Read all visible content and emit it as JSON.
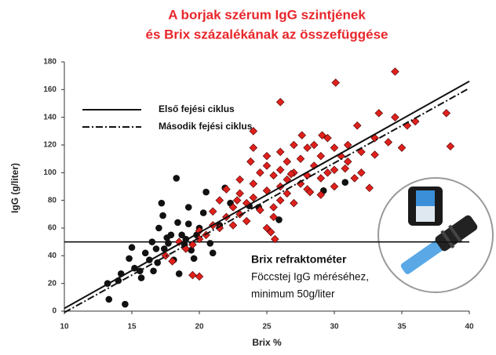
{
  "chart_data": {
    "type": "scatter",
    "title": [
      "A borjak szérum IgG szintjének",
      "és Brix százalékának az összefüggése"
    ],
    "x_label": "Brix %",
    "y_label": "IgG (g/liter)",
    "xlim": [
      10,
      40
    ],
    "ylim": [
      0,
      180
    ],
    "xticks": [
      10,
      15,
      20,
      25,
      30,
      35,
      40
    ],
    "yticks": [
      0,
      20,
      40,
      60,
      80,
      100,
      120,
      140,
      160,
      180
    ],
    "grid": false,
    "series": [
      {
        "marker": "circle",
        "color": "#111111",
        "x": [
          13.2,
          13.3,
          14.5,
          14,
          14.2,
          14.8,
          15,
          15.2,
          15.6,
          15.7,
          16,
          16.3,
          16.6,
          16.9,
          17,
          17.2,
          17.3,
          17.4,
          17.7,
          17.9,
          18.1,
          18.3,
          18.5,
          18.7,
          18.9,
          19,
          19.2,
          19.4,
          19.6,
          19.8,
          20,
          20.3,
          20.5,
          20.8,
          21,
          21.5,
          21.9,
          22.3,
          23.7,
          24.4,
          25.9,
          29.2,
          30.8,
          16.8,
          16.5,
          17.6,
          18.4,
          19.2
        ],
        "values": [
          20,
          8.5,
          5,
          22,
          27,
          38,
          46,
          31,
          29,
          24,
          42,
          37,
          29,
          35,
          60,
          78,
          69,
          45,
          49,
          55,
          37,
          96,
          27,
          55,
          48,
          52,
          63,
          44,
          38,
          55,
          60,
          71,
          86,
          49,
          42,
          62,
          89,
          78,
          76,
          75,
          66,
          87,
          93,
          45,
          50,
          53,
          64,
          75
        ]
      },
      {
        "marker": "diamond",
        "color": "#e0201c",
        "x": [
          17.5,
          18,
          18.5,
          19,
          19.5,
          20,
          20,
          20.5,
          21,
          21,
          21.5,
          21.5,
          22,
          22,
          22.5,
          22.5,
          23,
          23,
          23,
          23.5,
          23.5,
          24,
          24,
          24,
          24.5,
          24.5,
          25,
          25,
          25,
          25,
          25.5,
          25.5,
          25.5,
          26,
          26,
          26,
          26,
          26.5,
          26.5,
          26.5,
          27,
          27,
          27,
          27.5,
          27.5,
          28,
          28,
          28,
          28.5,
          28.5,
          29,
          29,
          29,
          29.5,
          29.5,
          30,
          30,
          30,
          30.5,
          30.8,
          31,
          31,
          31.5,
          31.7,
          32,
          32,
          32.6,
          33,
          33,
          33.3,
          34,
          34.5,
          35,
          35.4,
          36,
          38.3,
          38.6,
          19.5,
          20,
          25.3,
          25.6,
          26,
          27.6,
          29.1,
          30.1,
          34.5,
          24,
          22.8,
          23.8,
          26.8,
          28.2
        ],
        "values": [
          40,
          36,
          50,
          45,
          48,
          52,
          58,
          55,
          62,
          72,
          60,
          80,
          68,
          88,
          75,
          62,
          85,
          70,
          95,
          78,
          65,
          82,
          118,
          92,
          73,
          100,
          60,
          87,
          105,
          112,
          75,
          98,
          68,
          115,
          90,
          80,
          102,
          95,
          108,
          85,
          78,
          120,
          100,
          110,
          92,
          118,
          98,
          88,
          105,
          120,
          96,
          112,
          84,
          125,
          100,
          118,
          102,
          90,
          112,
          103,
          108,
          120,
          96,
          134,
          115,
          100,
          89,
          125,
          113,
          143,
          122,
          140,
          118,
          134,
          137,
          143,
          119,
          26,
          25,
          57,
          52,
          151,
          127,
          127,
          165,
          173,
          130,
          80,
          108,
          99,
          86
        ]
      }
    ],
    "lines": [
      {
        "name": "Első fejési ciklus",
        "style": "solid",
        "color": "#111111",
        "x": [
          10,
          40
        ],
        "values": [
          2,
          166
        ]
      },
      {
        "name": "Második fejési ciklus",
        "style": "dashdot",
        "color": "#111111",
        "x": [
          10,
          40
        ],
        "values": [
          -1,
          161
        ]
      }
    ],
    "hline": 50,
    "annotations": [
      "Brix refraktométer",
      "Föccstej IgG méréséhez,",
      "minimum 50g/liter"
    ]
  }
}
